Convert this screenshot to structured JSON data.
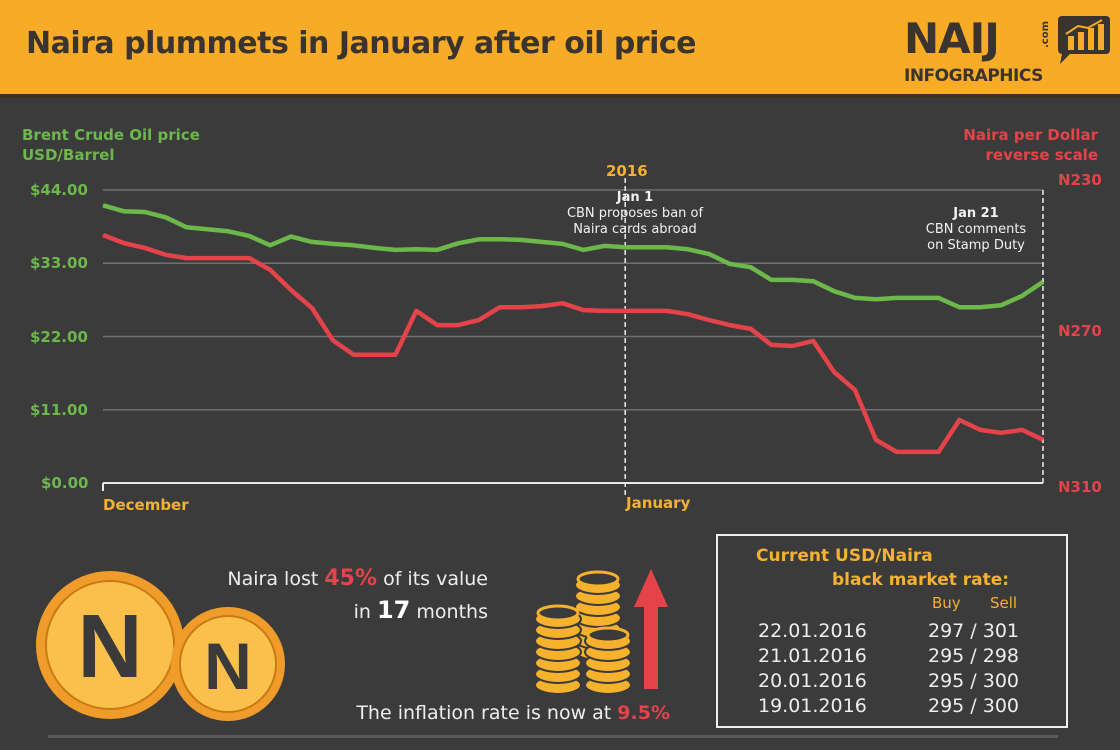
{
  "header": {
    "title": "Naira plummets in January after oil price",
    "logo_main": "NAIJ",
    "logo_com": ".com",
    "logo_sub": "INFOGRAPHICS",
    "bg_color": "#f8ab27"
  },
  "chart_data": {
    "type": "line",
    "x": [
      "2015-12-07",
      "2015-12-08",
      "2015-12-09",
      "2015-12-10",
      "2015-12-11",
      "2015-12-12",
      "2015-12-13",
      "2015-12-14",
      "2015-12-15",
      "2015-12-16",
      "2015-12-17",
      "2015-12-18",
      "2015-12-19",
      "2015-12-20",
      "2015-12-21",
      "2015-12-22",
      "2015-12-23",
      "2015-12-24",
      "2015-12-25",
      "2015-12-26",
      "2015-12-27",
      "2015-12-28",
      "2015-12-29",
      "2015-12-30",
      "2015-12-31",
      "2016-01-01",
      "2016-01-02",
      "2016-01-03",
      "2016-01-04",
      "2016-01-05",
      "2016-01-06",
      "2016-01-07",
      "2016-01-08",
      "2016-01-09",
      "2016-01-10",
      "2016-01-11",
      "2016-01-12",
      "2016-01-13",
      "2016-01-14",
      "2016-01-15",
      "2016-01-16",
      "2016-01-17",
      "2016-01-18",
      "2016-01-19",
      "2016-01-20",
      "2016-01-21"
    ],
    "x_tick_labels": [
      "December",
      "January"
    ],
    "year_label": "2016",
    "left_axis": {
      "label_line1": "Brent Crude Oil price",
      "label_line2": "USD/Barrel",
      "ticks": [
        "$44.00",
        "$33.00",
        "$22.00",
        "$11.00",
        "$0.00"
      ],
      "range": [
        0,
        44
      ]
    },
    "right_axis": {
      "label_line1": "Naira per Dollar",
      "label_line2": "reverse scale",
      "ticks": [
        "N230",
        "N270",
        "N310"
      ],
      "range": [
        230,
        310
      ],
      "reversed": true
    },
    "grid": true,
    "series": [
      {
        "axis": "left",
        "color": "#6cb84b",
        "values": [
          41.7,
          40.8,
          40.7,
          39.9,
          38.4,
          38.1,
          37.8,
          37.1,
          35.7,
          37.0,
          36.2,
          35.9,
          35.7,
          35.3,
          35.0,
          35.1,
          35.0,
          36.0,
          36.6,
          36.6,
          36.5,
          36.2,
          35.9,
          35.0,
          35.6,
          35.4,
          35.4,
          35.4,
          35.1,
          34.4,
          32.9,
          32.4,
          30.5,
          30.5,
          30.3,
          28.8,
          27.8,
          27.6,
          27.8,
          27.8,
          27.8,
          26.4,
          26.4,
          26.7,
          28.1,
          30.2
        ]
      },
      {
        "axis": "right",
        "color": "#e5434a",
        "values": [
          242.3,
          244.5,
          245.8,
          247.7,
          248.6,
          248.6,
          248.6,
          248.6,
          251.8,
          257.3,
          262.2,
          271.0,
          275.0,
          275.0,
          275.0,
          263.0,
          266.9,
          266.9,
          265.5,
          262.0,
          262.0,
          261.7,
          260.9,
          262.8,
          263.0,
          263.0,
          263.0,
          263.0,
          263.9,
          265.5,
          266.9,
          267.9,
          272.3,
          272.6,
          271.2,
          279.7,
          284.6,
          298.2,
          301.5,
          301.5,
          301.5,
          292.8,
          295.5,
          296.3,
          295.5,
          298.2
        ]
      }
    ],
    "annotations": [
      {
        "date": "2016-01-01",
        "title": "Jan 1",
        "line1": "CBN proposes ban of",
        "line2": "Naira cards abroad"
      },
      {
        "date": "2016-01-21",
        "title": "Jan 21",
        "line1": "CBN comments",
        "line2": "on Stamp Duty"
      }
    ]
  },
  "stats": {
    "naira_lost_prefix": "Naira lost",
    "naira_lost_pct": "45%",
    "naira_lost_suffix": "of its value",
    "months_prefix": "in",
    "months_value": "17",
    "months_suffix": "months",
    "inflation_prefix": "The inflation rate is now at",
    "inflation_value": "9.5%",
    "coin_symbol": "N"
  },
  "rates": {
    "title_line1": "Current USD/Naira",
    "title_line2": "black market rate:",
    "buy_label": "Buy",
    "sell_label": "Sell",
    "rows": [
      {
        "date": "22.01.2016",
        "value": "297 / 301"
      },
      {
        "date": "21.01.2016",
        "value": "295 / 298"
      },
      {
        "date": "20.01.2016",
        "value": "295 / 300"
      },
      {
        "date": "19.01.2016",
        "value": "295 / 300"
      }
    ]
  }
}
